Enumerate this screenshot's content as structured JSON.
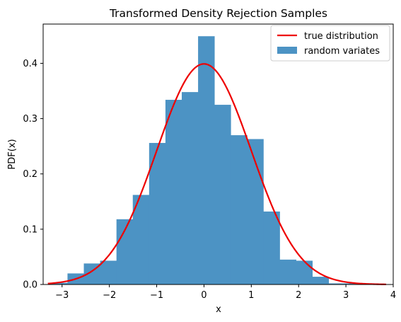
{
  "chart_data": {
    "type": "bar",
    "title": "Transformed Density Rejection Samples",
    "xlabel": "x",
    "ylabel": "PDF(x)",
    "xlim": [
      -3.4,
      4.0
    ],
    "ylim": [
      0,
      0.471
    ],
    "xticks": [
      "−3",
      "−2",
      "−1",
      "0",
      "1",
      "2",
      "3",
      "4"
    ],
    "yticks": [
      "0.0",
      "0.1",
      "0.2",
      "0.3",
      "0.4"
    ],
    "histogram": {
      "name": "random variates",
      "color": "#4c93c4",
      "bin_edges": [
        -3.23,
        -2.885,
        -2.54,
        -2.195,
        -1.85,
        -1.505,
        -1.16,
        -0.815,
        -0.47,
        -0.125,
        0.22,
        0.565,
        0.91,
        1.255,
        1.6,
        1.945,
        2.29,
        2.635,
        2.98,
        3.325,
        3.67
      ],
      "values": [
        0.003,
        0.02,
        0.038,
        0.043,
        0.118,
        0.162,
        0.256,
        0.334,
        0.348,
        0.449,
        0.325,
        0.27,
        0.263,
        0.132,
        0.045,
        0.043,
        0.014,
        0.002,
        0.002,
        0.002
      ]
    },
    "curve": {
      "name": "true distribution",
      "color": "#ee0000",
      "x_range": [
        -3.3,
        3.85
      ],
      "distribution": "standard normal"
    },
    "legend": {
      "position": "top-right",
      "entries": [
        {
          "label": "true distribution",
          "kind": "line",
          "color": "#ee0000"
        },
        {
          "label": "random variates",
          "kind": "patch",
          "color": "#4c93c4"
        }
      ]
    },
    "grid": false
  }
}
